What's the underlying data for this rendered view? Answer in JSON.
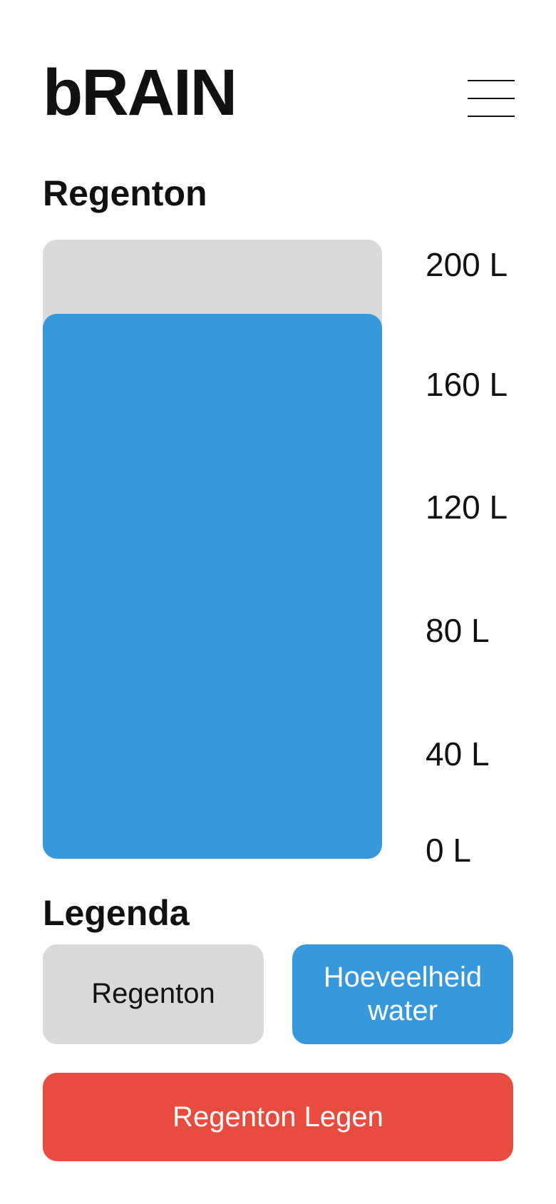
{
  "app": {
    "title": "bRAIN"
  },
  "menu": {
    "icon": "hamburger-menu-icon"
  },
  "tank_section": {
    "title": "Regenton",
    "capacity_liters": 200,
    "current_liters": 176,
    "scale_labels": [
      "200 L",
      "160 L",
      "120 L",
      "80 L",
      "40 L",
      "0 L"
    ]
  },
  "legend": {
    "title": "Legenda",
    "tank_label": "Regenton",
    "water_label": "Hoeveelheid water"
  },
  "actions": {
    "empty_label": "Regenton Legen"
  },
  "colors": {
    "tank": "#d9d9d9",
    "water": "#3799db",
    "danger": "#e74c3f",
    "text": "#111111"
  }
}
